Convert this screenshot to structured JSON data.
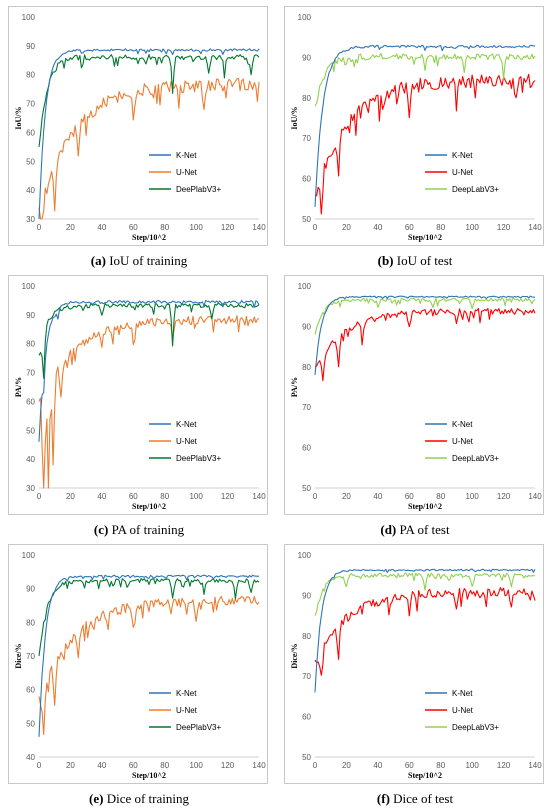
{
  "colors": {
    "knet": "#2e75b6",
    "unet_train": "#ed7d31",
    "unet_test": "#ff0000",
    "deeplab_train": "#00782e",
    "deeplab_test": "#92d050"
  },
  "chart_data": [
    {
      "id": "a",
      "type": "line",
      "caption_letter": "(a)",
      "caption_text": " IoU of training",
      "xlabel": "Step/10^2",
      "ylabel": "IoU/%",
      "xlim": [
        0,
        140
      ],
      "ylim": [
        30,
        100
      ],
      "xticks": [
        0,
        20,
        40,
        60,
        80,
        100,
        120,
        140
      ],
      "yticks": [
        30,
        40,
        50,
        60,
        70,
        80,
        90,
        100
      ],
      "legend_position": "right-middle",
      "series": [
        {
          "name": "K-Net",
          "color_key": "knet",
          "start": 30,
          "level": 89,
          "rise": 4,
          "noise": 0.8,
          "dips": [
            [
              85,
              1.5
            ]
          ]
        },
        {
          "name": "U-Net",
          "color_key": "unet_train",
          "start": 34,
          "level": 79,
          "rise": 22,
          "noise": 4.5,
          "dips": [
            [
              2,
              12
            ],
            [
              10,
              16
            ],
            [
              25,
              12
            ],
            [
              60,
              10
            ],
            [
              105,
              8
            ]
          ]
        },
        {
          "name": "DeePlabV3+",
          "color_key": "deeplab_train",
          "start": 55,
          "level": 87,
          "rise": 5,
          "noise": 1.8,
          "dips": [
            [
              85,
              12
            ],
            [
              108,
              6
            ],
            [
              118,
              5
            ],
            [
              135,
              6
            ]
          ]
        }
      ]
    },
    {
      "id": "b",
      "type": "line",
      "caption_letter": "(b)",
      "caption_text": " IoU of test",
      "xlabel": "Step/10^2",
      "ylabel": "IoU/%",
      "xlim": [
        0,
        140
      ],
      "ylim": [
        50,
        100
      ],
      "xticks": [
        0,
        20,
        40,
        60,
        80,
        100,
        120,
        140
      ],
      "yticks": [
        50,
        60,
        70,
        80,
        90,
        100
      ],
      "legend_position": "right-middle",
      "series": [
        {
          "name": "K-Net",
          "color_key": "knet",
          "start": 53,
          "level": 93,
          "rise": 5,
          "noise": 0.6,
          "dips": []
        },
        {
          "name": "U-Net",
          "color_key": "unet_test",
          "start": 56,
          "level": 86,
          "rise": 20,
          "noise": 3.5,
          "dips": [
            [
              4,
              8
            ],
            [
              15,
              10
            ],
            [
              60,
              8
            ],
            [
              90,
              6
            ],
            [
              128,
              5
            ]
          ]
        },
        {
          "name": "DeepLabV3+",
          "color_key": "deeplab_test",
          "start": 78,
          "level": 91,
          "rise": 6,
          "noise": 1.5,
          "dips": [
            [
              25,
              3
            ],
            [
              70,
              4
            ],
            [
              95,
              4
            ],
            [
              120,
              4
            ]
          ]
        }
      ]
    },
    {
      "id": "c",
      "type": "line",
      "caption_letter": "(c)",
      "caption_text": " PA of training",
      "xlabel": "Step/10^2",
      "ylabel": "PA/%",
      "xlim": [
        0,
        140
      ],
      "ylim": [
        30,
        100
      ],
      "xticks": [
        0,
        20,
        40,
        60,
        80,
        100,
        120,
        140
      ],
      "yticks": [
        30,
        40,
        50,
        60,
        70,
        80,
        90,
        100
      ],
      "legend_position": "right-middle",
      "series": [
        {
          "name": "K-Net",
          "color_key": "knet",
          "start": 46,
          "level": 95,
          "rise": 4,
          "noise": 1.0,
          "dips": [
            [
              3,
              8
            ],
            [
              12,
              4
            ]
          ]
        },
        {
          "name": "U-Net",
          "color_key": "unet_train",
          "start": 60,
          "level": 90,
          "rise": 22,
          "noise": 3.0,
          "dips": [
            [
              3,
              48
            ],
            [
              6,
              35
            ],
            [
              9,
              30
            ],
            [
              14,
              12
            ],
            [
              40,
              5
            ],
            [
              60,
              6
            ],
            [
              85,
              7
            ]
          ]
        },
        {
          "name": "DeePlabV3+",
          "color_key": "deeplab_train",
          "start": 76,
          "level": 94,
          "rise": 5,
          "noise": 1.5,
          "dips": [
            [
              3,
              15
            ],
            [
              40,
              4
            ],
            [
              85,
              14
            ],
            [
              110,
              4
            ]
          ]
        }
      ]
    },
    {
      "id": "d",
      "type": "line",
      "caption_letter": "(d)",
      "caption_text": " PA of test",
      "xlabel": "Step/10^2",
      "ylabel": "PA/%",
      "xlim": [
        0,
        140
      ],
      "ylim": [
        50,
        100
      ],
      "xticks": [
        0,
        20,
        40,
        60,
        80,
        100,
        120,
        140
      ],
      "yticks": [
        50,
        60,
        70,
        80,
        90,
        100
      ],
      "legend_position": "right-middle",
      "series": [
        {
          "name": "K-Net",
          "color_key": "knet",
          "start": 78,
          "level": 97.5,
          "rise": 4,
          "noise": 0.3,
          "dips": []
        },
        {
          "name": "U-Net",
          "color_key": "unet_test",
          "start": 80,
          "level": 94.5,
          "rise": 18,
          "noise": 1.5,
          "dips": [
            [
              5,
              6
            ],
            [
              15,
              7
            ],
            [
              30,
              4
            ],
            [
              60,
              4
            ],
            [
              90,
              3
            ]
          ]
        },
        {
          "name": "DeepLabV3+",
          "color_key": "deeplab_test",
          "start": 88,
          "level": 97,
          "rise": 5,
          "noise": 0.8,
          "dips": [
            [
              40,
              2
            ],
            [
              75,
              2
            ],
            [
              100,
              2
            ]
          ]
        }
      ]
    },
    {
      "id": "e",
      "type": "line",
      "caption_letter": "(e)",
      "caption_text": " Dice of training",
      "xlabel": "Step/10^2",
      "ylabel": "Dice/%",
      "xlim": [
        0,
        140
      ],
      "ylim": [
        40,
        100
      ],
      "xticks": [
        0,
        20,
        40,
        60,
        80,
        100,
        120,
        140
      ],
      "yticks": [
        40,
        50,
        60,
        70,
        80,
        90,
        100
      ],
      "legend_position": "right-middle",
      "series": [
        {
          "name": "K-Net",
          "color_key": "knet",
          "start": 46,
          "level": 94,
          "rise": 4,
          "noise": 0.6,
          "dips": []
        },
        {
          "name": "U-Net",
          "color_key": "unet_train",
          "start": 58,
          "level": 88,
          "rise": 22,
          "noise": 2.8,
          "dips": [
            [
              3,
              15
            ],
            [
              10,
              12
            ],
            [
              25,
              8
            ],
            [
              60,
              6
            ],
            [
              100,
              5
            ]
          ]
        },
        {
          "name": "DeePlabV3+",
          "color_key": "deeplab_train",
          "start": 70,
          "level": 93,
          "rise": 5,
          "noise": 1.2,
          "dips": [
            [
              85,
              5
            ],
            [
              105,
              4
            ],
            [
              125,
              5
            ],
            [
              135,
              4
            ]
          ]
        }
      ]
    },
    {
      "id": "f",
      "type": "line",
      "caption_letter": "(f)",
      "caption_text": " Dice of test",
      "xlabel": "Step/10^2",
      "ylabel": "Dice/%",
      "xlim": [
        0,
        140
      ],
      "ylim": [
        50,
        100
      ],
      "xticks": [
        0,
        20,
        40,
        60,
        80,
        100,
        120,
        140
      ],
      "yticks": [
        50,
        60,
        70,
        80,
        90,
        100
      ],
      "legend_position": "right-middle",
      "series": [
        {
          "name": "K-Net",
          "color_key": "knet",
          "start": 66,
          "level": 96.5,
          "rise": 4,
          "noise": 0.4,
          "dips": []
        },
        {
          "name": "U-Net",
          "color_key": "unet_test",
          "start": 74,
          "level": 92,
          "rise": 20,
          "noise": 2.2,
          "dips": [
            [
              4,
              6
            ],
            [
              15,
              8
            ],
            [
              60,
              6
            ],
            [
              90,
              5
            ],
            [
              125,
              4
            ]
          ]
        },
        {
          "name": "DeepLabV3+",
          "color_key": "deeplab_test",
          "start": 85,
          "level": 95.5,
          "rise": 5,
          "noise": 1.0,
          "dips": [
            [
              20,
              3
            ],
            [
              70,
              3
            ],
            [
              100,
              3
            ],
            [
              125,
              3
            ]
          ]
        }
      ]
    }
  ]
}
